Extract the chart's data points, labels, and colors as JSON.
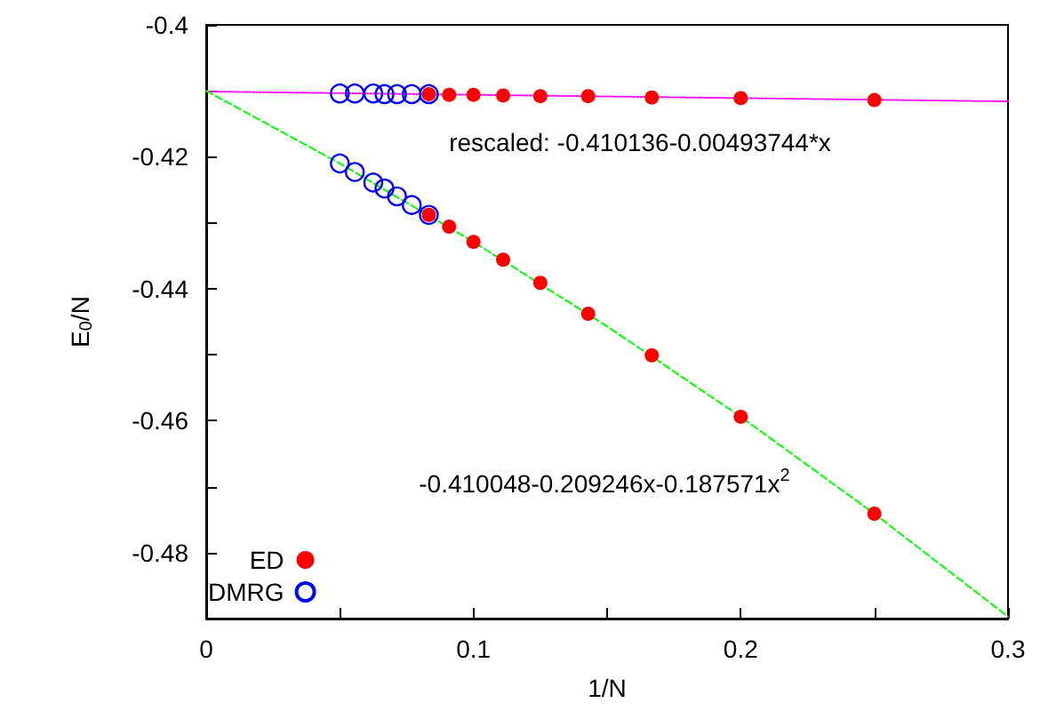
{
  "chart_data": {
    "type": "scatter",
    "xlabel": "1/N",
    "ylabel": "E$_{0}$/N",
    "xlim": [
      0,
      0.3
    ],
    "xticks": [
      0,
      {
        "value": 0.05,
        "label": null
      },
      0.1,
      {
        "value": 0.15,
        "label": null
      },
      0.2,
      {
        "value": 0.25,
        "label": null
      },
      0.3
    ],
    "ylim": [
      -0.49,
      -0.4
    ],
    "yticks": [
      -0.4,
      {
        "value": -0.41,
        "label": null
      },
      -0.42,
      {
        "value": -0.43,
        "label": null
      },
      -0.44,
      {
        "value": -0.45,
        "label": null
      },
      -0.46,
      {
        "value": -0.47,
        "label": null
      },
      -0.48
    ],
    "grid": false,
    "legend": "bottom left",
    "series": [
      {
        "name": "ED",
        "type": "scatter",
        "marker": "circle",
        "color": "#ff0000",
        "x": [
          0.0833,
          0.0909,
          0.1,
          0.1111,
          0.125,
          0.1429,
          0.1667,
          0.2,
          0.25,
          0.0833,
          0.0909,
          0.1,
          0.1111,
          0.125,
          0.1429,
          0.1667,
          0.2,
          0.25
        ],
        "values": [
          -0.4105,
          -0.4106,
          -0.4106,
          -0.4107,
          -0.4108,
          -0.4108,
          -0.411,
          -0.4111,
          -0.4114,
          -0.4288,
          -0.4306,
          -0.4329,
          -0.4356,
          -0.4391,
          -0.4438,
          -0.4501,
          -0.4594,
          -0.4741
        ]
      },
      {
        "name": "DMRG",
        "type": "scatter",
        "marker": "circle",
        "color": "#0000ff",
        "x": [
          0.05,
          0.0556,
          0.0625,
          0.0667,
          0.0714,
          0.0769,
          0.0833,
          0.05,
          0.0556,
          0.0625,
          0.0667,
          0.0714,
          0.0769,
          0.0833
        ],
        "values": [
          -0.4104,
          -0.4104,
          -0.4104,
          -0.4105,
          -0.4105,
          -0.4105,
          -0.4105,
          -0.421,
          -0.4223,
          -0.4239,
          -0.4248,
          -0.426,
          -0.4273,
          -0.4288
        ]
      },
      {
        "type": "line",
        "marker": "none",
        "line_style": "dotted",
        "color": "#ff00ff",
        "x": [
          0,
          0.3
        ],
        "values": [
          -0.4101,
          -0.4116
        ]
      },
      {
        "type": "line",
        "marker": "none",
        "line_style": "dashed",
        "color": "#00ff00",
        "x": [
          0,
          0.05,
          0.1,
          0.15,
          0.2,
          0.25,
          0.3
        ],
        "values": [
          -0.41,
          -0.421,
          -0.4329,
          -0.4457,
          -0.4594,
          -0.4741,
          -0.4897
        ]
      }
    ],
    "annotations": [
      "rescaled: -0.410136-0.00493744*x",
      "-0.410048-0.209246x-0.187571x$^{2}$"
    ]
  }
}
